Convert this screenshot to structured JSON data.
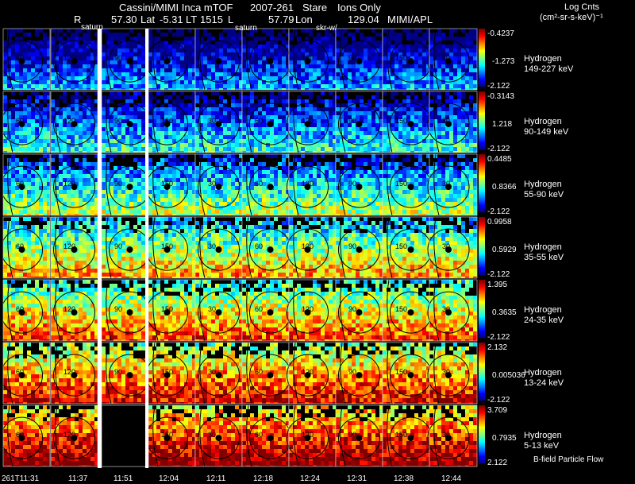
{
  "header": {
    "line1_left": "Cassini/MIMI Inca mTOF",
    "date": "2007-261",
    "mode": "Stare",
    "species_filter": "Ions Only",
    "row2": {
      "r_label": "R",
      "r_value": "57.30",
      "lat_label": "Lat",
      "lat_value": "-5.31",
      "lt_label": "LT",
      "lt_value": "1515",
      "l_label": "L",
      "l_value": "57.79",
      "lon_label": "Lon",
      "lon_value": "129.04",
      "source": "MIMI/APL"
    },
    "overlays": {
      "saturn_1": "saturn",
      "saturn_2": "saturn",
      "skr": "skr-w/"
    }
  },
  "colorbar_header": {
    "line1": "Log Cnts",
    "line2": "(cm²-sr-s-keV)⁻¹"
  },
  "bands": [
    {
      "species": "Hydrogen",
      "energy": "149-227 keV",
      "max": "-0.4237",
      "mid": "-1.273",
      "min": "-2.122",
      "level": 0.05
    },
    {
      "species": "Hydrogen",
      "energy": "90-149 keV",
      "max": "-0.3143",
      "mid": "1.218",
      "min": "-2.122",
      "level": 0.18
    },
    {
      "species": "Hydrogen",
      "energy": "55-90 keV",
      "max": "0.4485",
      "mid": "0.8366",
      "min": "-2.122",
      "level": 0.32
    },
    {
      "species": "Hydrogen",
      "energy": "35-55 keV",
      "max": "0.9958",
      "mid": "0.5929",
      "min": "-2.122",
      "level": 0.48
    },
    {
      "species": "Hydrogen",
      "energy": "24-35 keV",
      "max": "1.395",
      "mid": "0.3635",
      "min": "-2.122",
      "level": 0.58
    },
    {
      "species": "Hydrogen",
      "energy": "13-24 keV",
      "max": "2.132",
      "mid": "0.005036",
      "min": "-2.122",
      "level": 0.68
    },
    {
      "species": "Hydrogen",
      "energy": "5-13 keV",
      "max": "3.709",
      "mid": "0.7935",
      "min": "2.122",
      "level": 0.8
    }
  ],
  "time_ticks": [
    "261T11:31",
    "11:37",
    "11:51",
    "12:04",
    "12:11",
    "12:18",
    "12:24",
    "12:31",
    "12:38",
    "12:44"
  ],
  "contour_labels": {
    "c30": "30",
    "c60": "60",
    "c90": "90",
    "c120": "120",
    "c150": "150"
  },
  "footer_note": "B-field Particle Flow",
  "colors": {
    "background": "#000000",
    "contour": "#000000",
    "separator": "#ffffff"
  }
}
